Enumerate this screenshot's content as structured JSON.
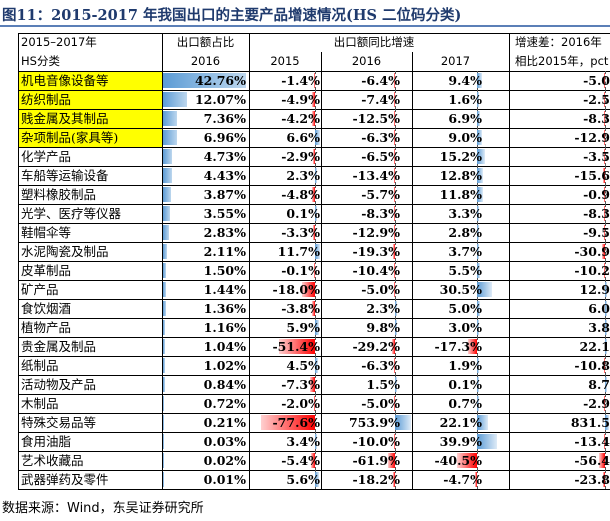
{
  "title": "图11：2015-2017 年我国出口的主要产品增速情况(HS 二位码分类)",
  "footer": "数据来源：Wind，东吴证券研究所",
  "header": {
    "period": "2015–2017年",
    "classification": "HS分类",
    "share_label": "出口额占比",
    "share_year": "2016",
    "growth_label": "出口额同比增速",
    "year_2015": "2015",
    "year_2016": "2016",
    "year_2017": "2017",
    "diff_label_1": "增速差：2016年",
    "diff_label_2": "相比2015年，pct"
  },
  "colors": {
    "positive_bar": "#5b9bd5",
    "negative_bar": "#ff0000",
    "highlight": "#ffff00"
  },
  "chart_data": {
    "type": "table",
    "title": "2015-2017 年我国出口的主要产品增速情况(HS 二位码分类)",
    "columns": [
      "HS分类",
      "出口额占比 2016",
      "出口额同比增速 2015",
      "出口额同比增速 2016",
      "出口额同比增速 2017",
      "增速差：2016年相比2015年，pct"
    ],
    "rows": [
      {
        "name": "机电音像设备等",
        "share": "42.76%",
        "g2015": "-1.4%",
        "g2016": "-6.4%",
        "g2017": "9.4%",
        "diff": "-5.0",
        "highlight": true
      },
      {
        "name": "纺织制品",
        "share": "12.07%",
        "g2015": "-4.9%",
        "g2016": "-7.4%",
        "g2017": "1.6%",
        "diff": "-2.5",
        "highlight": true
      },
      {
        "name": "贱金属及其制品",
        "share": "7.36%",
        "g2015": "-4.2%",
        "g2016": "-12.5%",
        "g2017": "6.9%",
        "diff": "-8.3",
        "highlight": true
      },
      {
        "name": "杂项制品(家具等)",
        "share": "6.96%",
        "g2015": "6.6%",
        "g2016": "-6.3%",
        "g2017": "9.0%",
        "diff": "-12.9",
        "highlight": true
      },
      {
        "name": "化学产品",
        "share": "4.73%",
        "g2015": "-2.9%",
        "g2016": "-6.5%",
        "g2017": "15.2%",
        "diff": "-3.5",
        "highlight": false
      },
      {
        "name": "车船等运输设备",
        "share": "4.43%",
        "g2015": "2.3%",
        "g2016": "-13.4%",
        "g2017": "12.8%",
        "diff": "-15.6",
        "highlight": false
      },
      {
        "name": "塑料橡胶制品",
        "share": "3.87%",
        "g2015": "-4.8%",
        "g2016": "-5.7%",
        "g2017": "11.8%",
        "diff": "-0.9",
        "highlight": false
      },
      {
        "name": "光学、医疗等仪器",
        "share": "3.55%",
        "g2015": "0.1%",
        "g2016": "-8.3%",
        "g2017": "3.3%",
        "diff": "-8.3",
        "highlight": false
      },
      {
        "name": "鞋帽伞等",
        "share": "2.83%",
        "g2015": "-3.3%",
        "g2016": "-12.9%",
        "g2017": "2.8%",
        "diff": "-9.5",
        "highlight": false
      },
      {
        "name": "水泥陶瓷及制品",
        "share": "2.11%",
        "g2015": "11.7%",
        "g2016": "-19.3%",
        "g2017": "3.7%",
        "diff": "-30.9",
        "highlight": false
      },
      {
        "name": "皮革制品",
        "share": "1.50%",
        "g2015": "-0.1%",
        "g2016": "-10.4%",
        "g2017": "5.5%",
        "diff": "-10.2",
        "highlight": false
      },
      {
        "name": "矿产品",
        "share": "1.44%",
        "g2015": "-18.0%",
        "g2016": "-5.0%",
        "g2017": "30.5%",
        "diff": "12.9",
        "highlight": false
      },
      {
        "name": "食饮烟酒",
        "share": "1.36%",
        "g2015": "-3.8%",
        "g2016": "2.3%",
        "g2017": "5.0%",
        "diff": "6.0",
        "highlight": false
      },
      {
        "name": "植物产品",
        "share": "1.16%",
        "g2015": "5.9%",
        "g2016": "9.8%",
        "g2017": "3.0%",
        "diff": "3.8",
        "highlight": false
      },
      {
        "name": "贵金属及制品",
        "share": "1.04%",
        "g2015": "-51.4%",
        "g2016": "-29.2%",
        "g2017": "-17.3%",
        "diff": "22.1",
        "highlight": false
      },
      {
        "name": "纸制品",
        "share": "1.02%",
        "g2015": "4.5%",
        "g2016": "-6.3%",
        "g2017": "1.9%",
        "diff": "-10.8",
        "highlight": false
      },
      {
        "name": "活动物及产品",
        "share": "0.84%",
        "g2015": "-7.3%",
        "g2016": "1.5%",
        "g2017": "0.1%",
        "diff": "8.7",
        "highlight": false
      },
      {
        "name": "木制品",
        "share": "0.72%",
        "g2015": "-2.0%",
        "g2016": "-5.0%",
        "g2017": "0.7%",
        "diff": "-2.9",
        "highlight": false
      },
      {
        "name": "特殊交易品等",
        "share": "0.21%",
        "g2015": "-77.6%",
        "g2016": "753.9%",
        "g2017": "22.1%",
        "diff": "831.5",
        "highlight": false
      },
      {
        "name": "食用油脂",
        "share": "0.03%",
        "g2015": "3.4%",
        "g2016": "-10.0%",
        "g2017": "39.9%",
        "diff": "-13.4",
        "highlight": false
      },
      {
        "name": "艺术收藏品",
        "share": "0.02%",
        "g2015": "-5.4%",
        "g2016": "-61.9%",
        "g2017": "-40.5%",
        "diff": "-56.4",
        "highlight": false
      },
      {
        "name": "武器弹药及零件",
        "share": "0.01%",
        "g2015": "5.6%",
        "g2016": "-18.2%",
        "g2017": "-4.7%",
        "diff": "-23.8",
        "highlight": false
      }
    ]
  }
}
